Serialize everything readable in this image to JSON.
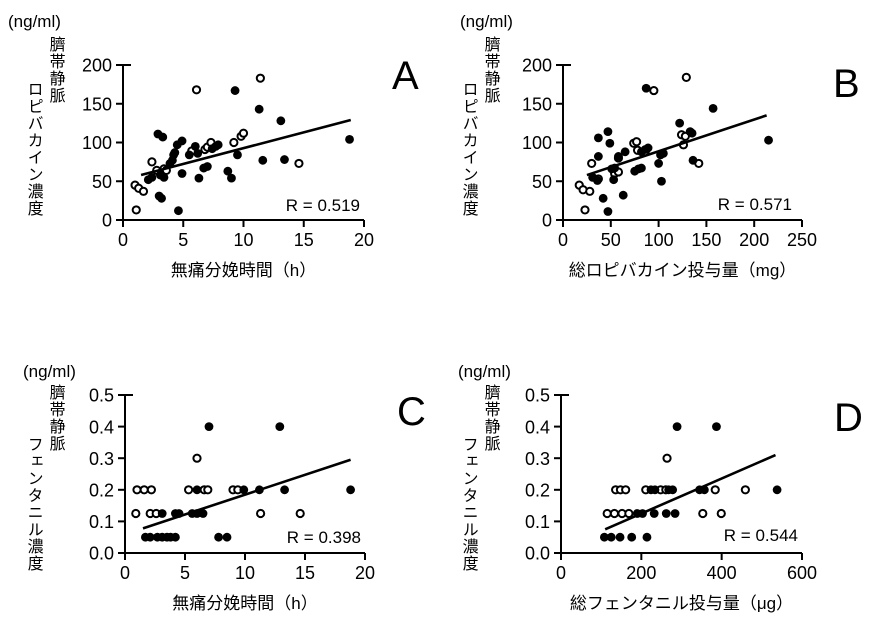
{
  "figure": {
    "background": "#ffffff",
    "foreground": "#000000",
    "description_units": "(ng/ml)"
  },
  "chart_data": [
    {
      "id": "A",
      "type": "scatter",
      "letter": "A",
      "y_unit": "(ng/ml)",
      "y_axis_label_line1": "臍帯静脈",
      "y_axis_label_line2": "ロピバカイン濃度",
      "x_label": "無痛分娩時間（h）",
      "r_label": "R = 0.519",
      "xlim": [
        0,
        20
      ],
      "ylim": [
        0,
        200
      ],
      "xticks": [
        0,
        5,
        10,
        15,
        20
      ],
      "xtick_labels": [
        "0",
        "5",
        "10",
        "15",
        "20"
      ],
      "yticks": [
        0,
        50,
        100,
        150,
        200
      ],
      "ytick_labels": [
        "0",
        "50",
        "100",
        "150",
        "200"
      ],
      "legend": "none",
      "grid": false,
      "marker_color": "#000000",
      "line_color": "#000000",
      "regression_line": {
        "x1": 1.5,
        "y1": 58,
        "x2": 18.9,
        "y2": 129
      },
      "series": [
        {
          "name": "open-circles",
          "marker": "open",
          "points": [
            [
              1.0,
              45
            ],
            [
              1.3,
              41
            ],
            [
              1.7,
              37
            ],
            [
              1.1,
              13
            ],
            [
              2.4,
              75
            ],
            [
              2.8,
              64
            ],
            [
              3.4,
              66
            ],
            [
              3.6,
              64
            ],
            [
              5.7,
              89
            ],
            [
              6.1,
              168
            ],
            [
              6.8,
              91
            ],
            [
              7.0,
              94
            ],
            [
              7.3,
              100
            ],
            [
              9.2,
              100
            ],
            [
              9.8,
              108
            ],
            [
              10.0,
              112
            ],
            [
              11.4,
              183
            ],
            [
              14.6,
              73
            ]
          ]
        },
        {
          "name": "filled-circles",
          "marker": "filled",
          "points": [
            [
              2.1,
              52
            ],
            [
              2.4,
              55
            ],
            [
              2.9,
              111
            ],
            [
              3.3,
              107
            ],
            [
              3.0,
              31
            ],
            [
              3.2,
              28
            ],
            [
              3.1,
              58
            ],
            [
              3.4,
              55
            ],
            [
              3.9,
              73
            ],
            [
              4.1,
              77
            ],
            [
              4.2,
              84
            ],
            [
              4.3,
              87
            ],
            [
              4.5,
              97
            ],
            [
              4.6,
              12
            ],
            [
              4.9,
              102
            ],
            [
              4.9,
              60
            ],
            [
              5.5,
              84
            ],
            [
              6.0,
              95
            ],
            [
              6.2,
              86
            ],
            [
              6.3,
              54
            ],
            [
              6.7,
              67
            ],
            [
              7.0,
              69
            ],
            [
              7.4,
              92
            ],
            [
              7.7,
              95
            ],
            [
              7.9,
              97
            ],
            [
              8.7,
              63
            ],
            [
              9.0,
              54
            ],
            [
              9.3,
              167
            ],
            [
              9.5,
              84
            ],
            [
              11.3,
              143
            ],
            [
              11.6,
              77
            ],
            [
              13.1,
              128
            ],
            [
              13.4,
              78
            ],
            [
              18.8,
              104
            ]
          ]
        }
      ]
    },
    {
      "id": "B",
      "type": "scatter",
      "letter": "B",
      "y_unit": "(ng/ml)",
      "y_axis_label_line1": "臍帯静脈",
      "y_axis_label_line2": "ロピバカイン濃度",
      "x_label": "総ロピバカイン投与量（mg）",
      "r_label": "R = 0.571",
      "xlim": [
        0,
        250
      ],
      "ylim": [
        0,
        200
      ],
      "xticks": [
        0,
        50,
        100,
        150,
        200,
        250
      ],
      "xtick_labels": [
        "0",
        "50",
        "100",
        "150",
        "200",
        "250"
      ],
      "yticks": [
        0,
        50,
        100,
        150,
        200
      ],
      "ytick_labels": [
        "0",
        "50",
        "100",
        "150",
        "200"
      ],
      "legend": "none",
      "grid": false,
      "marker_color": "#000000",
      "line_color": "#000000",
      "regression_line": {
        "x1": 25,
        "y1": 58,
        "x2": 213,
        "y2": 135
      },
      "series": [
        {
          "name": "open-circles",
          "marker": "open",
          "points": [
            [
              17,
              45
            ],
            [
              21,
              39
            ],
            [
              23,
              13
            ],
            [
              28,
              37
            ],
            [
              30,
              73
            ],
            [
              37,
              53
            ],
            [
              54,
              60
            ],
            [
              58,
              62
            ],
            [
              58,
              80
            ],
            [
              74,
              99
            ],
            [
              77,
              101
            ],
            [
              78,
              90
            ],
            [
              86,
              88
            ],
            [
              95,
              167
            ],
            [
              124,
              110
            ],
            [
              128,
              108
            ],
            [
              126,
              97
            ],
            [
              129,
              184
            ],
            [
              142,
              73
            ]
          ]
        },
        {
          "name": "filled-circles",
          "marker": "filled",
          "points": [
            [
              31,
              55
            ],
            [
              36,
              51
            ],
            [
              37,
              82
            ],
            [
              37,
              106
            ],
            [
              42,
              28
            ],
            [
              47,
              11
            ],
            [
              47,
              114
            ],
            [
              49,
              99
            ],
            [
              51,
              66
            ],
            [
              53,
              52
            ],
            [
              54,
              67
            ],
            [
              58,
              82
            ],
            [
              63,
              32
            ],
            [
              65,
              88
            ],
            [
              75,
              63
            ],
            [
              79,
              66
            ],
            [
              82,
              67
            ],
            [
              82,
              88
            ],
            [
              86,
              91
            ],
            [
              89,
              93
            ],
            [
              87,
              170
            ],
            [
              100,
              73
            ],
            [
              102,
              84
            ],
            [
              105,
              86
            ],
            [
              103,
              50
            ],
            [
              122,
              125
            ],
            [
              133,
              114
            ],
            [
              135,
              112
            ],
            [
              136,
              77
            ],
            [
              157,
              144
            ],
            [
              215,
              103
            ]
          ]
        }
      ]
    },
    {
      "id": "C",
      "type": "scatter",
      "letter": "C",
      "y_unit": "(ng/ml)",
      "y_axis_label_line1": "臍帯静脈",
      "y_axis_label_line2": "フェンタニル濃度",
      "x_label": "無痛分娩時間（h）",
      "r_label": "R = 0.398",
      "xlim": [
        0,
        20
      ],
      "ylim": [
        0,
        0.5
      ],
      "xticks": [
        0,
        5,
        10,
        15,
        20
      ],
      "xtick_labels": [
        "0",
        "5",
        "10",
        "15",
        "20"
      ],
      "yticks": [
        0,
        0.1,
        0.2,
        0.3,
        0.4,
        0.5
      ],
      "ytick_labels": [
        "0.0",
        "0.1",
        "0.2",
        "0.3",
        "0.4",
        "0.5"
      ],
      "legend": "none",
      "grid": false,
      "marker_color": "#000000",
      "line_color": "#000000",
      "regression_line": {
        "x1": 1.5,
        "y1": 0.078,
        "x2": 18.8,
        "y2": 0.295
      },
      "series": [
        {
          "name": "open-circles",
          "marker": "open",
          "points": [
            [
              1.0,
              0.2
            ],
            [
              1.6,
              0.2
            ],
            [
              2.2,
              0.2
            ],
            [
              5.3,
              0.2
            ],
            [
              6.6,
              0.2
            ],
            [
              6.9,
              0.2
            ],
            [
              9.0,
              0.2
            ],
            [
              9.4,
              0.2
            ],
            [
              0.9,
              0.125
            ],
            [
              2.1,
              0.125
            ],
            [
              2.6,
              0.125
            ],
            [
              11.3,
              0.125
            ],
            [
              14.6,
              0.125
            ],
            [
              6.0,
              0.3
            ]
          ]
        },
        {
          "name": "filled-circles",
          "marker": "filled",
          "points": [
            [
              1.7,
              0.05
            ],
            [
              2.1,
              0.05
            ],
            [
              2.7,
              0.05
            ],
            [
              3.1,
              0.05
            ],
            [
              3.5,
              0.05
            ],
            [
              3.8,
              0.05
            ],
            [
              4.2,
              0.05
            ],
            [
              7.8,
              0.05
            ],
            [
              8.5,
              0.05
            ],
            [
              3.1,
              0.125
            ],
            [
              4.2,
              0.125
            ],
            [
              4.5,
              0.125
            ],
            [
              5.6,
              0.125
            ],
            [
              6.0,
              0.125
            ],
            [
              6.5,
              0.125
            ],
            [
              6.0,
              0.2
            ],
            [
              9.9,
              0.2
            ],
            [
              11.2,
              0.2
            ],
            [
              13.3,
              0.2
            ],
            [
              18.8,
              0.2
            ],
            [
              7.0,
              0.4
            ],
            [
              12.9,
              0.4
            ]
          ]
        }
      ]
    },
    {
      "id": "D",
      "type": "scatter",
      "letter": "D",
      "y_unit": "(ng/ml)",
      "y_axis_label_line1": "臍帯静脈",
      "y_axis_label_line2": "フェンタニル濃度",
      "x_label": "総フェンタニル投与量（μg）",
      "r_label": "R = 0.544",
      "xlim": [
        0,
        600
      ],
      "ylim": [
        0,
        0.5
      ],
      "xticks": [
        0,
        200,
        400,
        600
      ],
      "xtick_labels": [
        "0",
        "200",
        "400",
        "600"
      ],
      "yticks": [
        0,
        0.1,
        0.2,
        0.3,
        0.4,
        0.5
      ],
      "ytick_labels": [
        "0.0",
        "0.1",
        "0.2",
        "0.3",
        "0.4",
        "0.5"
      ],
      "legend": "none",
      "grid": false,
      "marker_color": "#000000",
      "line_color": "#000000",
      "regression_line": {
        "x1": 110,
        "y1": 0.075,
        "x2": 534,
        "y2": 0.31
      },
      "series": [
        {
          "name": "open-circles",
          "marker": "open",
          "points": [
            [
              136,
              0.2
            ],
            [
              148,
              0.2
            ],
            [
              161,
              0.2
            ],
            [
              211,
              0.2
            ],
            [
              248,
              0.2
            ],
            [
              261,
              0.2
            ],
            [
              384,
              0.2
            ],
            [
              459,
              0.2
            ],
            [
              115,
              0.125
            ],
            [
              133,
              0.125
            ],
            [
              152,
              0.125
            ],
            [
              169,
              0.125
            ],
            [
              353,
              0.125
            ],
            [
              399,
              0.125
            ],
            [
              264,
              0.3
            ]
          ]
        },
        {
          "name": "filled-circles",
          "marker": "filled",
          "points": [
            [
              108,
              0.05
            ],
            [
              125,
              0.05
            ],
            [
              147,
              0.05
            ],
            [
              176,
              0.05
            ],
            [
              214,
              0.05
            ],
            [
              190,
              0.125
            ],
            [
              203,
              0.125
            ],
            [
              232,
              0.125
            ],
            [
              262,
              0.125
            ],
            [
              284,
              0.125
            ],
            [
              224,
              0.2
            ],
            [
              234,
              0.2
            ],
            [
              268,
              0.2
            ],
            [
              278,
              0.2
            ],
            [
              345,
              0.2
            ],
            [
              357,
              0.2
            ],
            [
              538,
              0.2
            ],
            [
              289,
              0.4
            ],
            [
              387,
              0.4
            ]
          ]
        }
      ]
    }
  ]
}
